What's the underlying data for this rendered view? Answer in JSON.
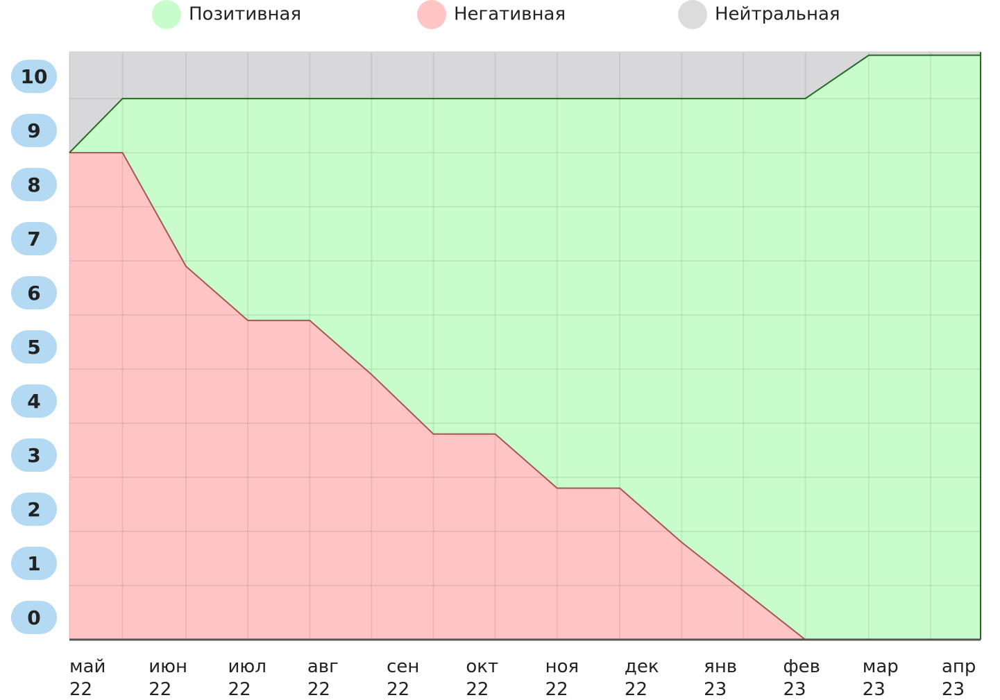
{
  "chart_data": {
    "type": "stacked_area",
    "x": [
      0,
      0.67,
      1.47,
      2.25,
      3.03,
      3.81,
      4.59,
      5.37,
      6.15,
      6.94,
      7.72,
      8.5,
      9.28,
      10.08,
      10.86,
      11.49
    ],
    "xlim": [
      0,
      11.49
    ],
    "xticks": [
      {
        "value": 0,
        "label": "май 22"
      },
      {
        "value": 1,
        "label": "июн 22"
      },
      {
        "value": 2,
        "label": "июл 22"
      },
      {
        "value": 3,
        "label": "авг 22"
      },
      {
        "value": 4,
        "label": "сен 22"
      },
      {
        "value": 5,
        "label": "окт 22"
      },
      {
        "value": 6,
        "label": "ноя 22"
      },
      {
        "value": 7,
        "label": "дек 22"
      },
      {
        "value": 8,
        "label": "янв 23"
      },
      {
        "value": 9,
        "label": "фев 23"
      },
      {
        "value": 10,
        "label": "мар 23"
      },
      {
        "value": 11,
        "label": "апр 23"
      }
    ],
    "ylim": [
      0,
      10.86
    ],
    "yticks": [
      0,
      1,
      2,
      3,
      4,
      5,
      6,
      7,
      8,
      9,
      10
    ],
    "grid": true,
    "series": [
      {
        "name": "Негативная",
        "color": "#ffc4c4",
        "line_color": "#a85454",
        "legend_color": "#ffc4c4",
        "values": [
          9.0,
          9.0,
          6.9,
          5.9,
          5.9,
          4.9,
          3.8,
          3.8,
          2.8,
          2.8,
          1.8,
          0.9,
          0,
          0,
          0,
          0
        ]
      },
      {
        "name": "Позитивная",
        "color": "#c8fccc",
        "line_color": "#1e6e1e",
        "legend_color": "#c8fccc",
        "values": [
          0,
          1.0,
          3.1,
          4.1,
          4.1,
          5.1,
          6.2,
          6.2,
          7.2,
          7.2,
          8.2,
          9.1,
          10.0,
          10.8,
          10.8,
          10.8
        ]
      },
      {
        "name": "Нейтральная",
        "color": "#d8d7da",
        "line_color": "#d8d7da",
        "legend_color": "#dcdcdc",
        "values": [
          1.86,
          0.86,
          0.86,
          0.86,
          0.86,
          0.86,
          0.86,
          0.86,
          0.86,
          0.86,
          0.86,
          0.86,
          0.86,
          0.06,
          0.06,
          0.06
        ]
      }
    ]
  }
}
